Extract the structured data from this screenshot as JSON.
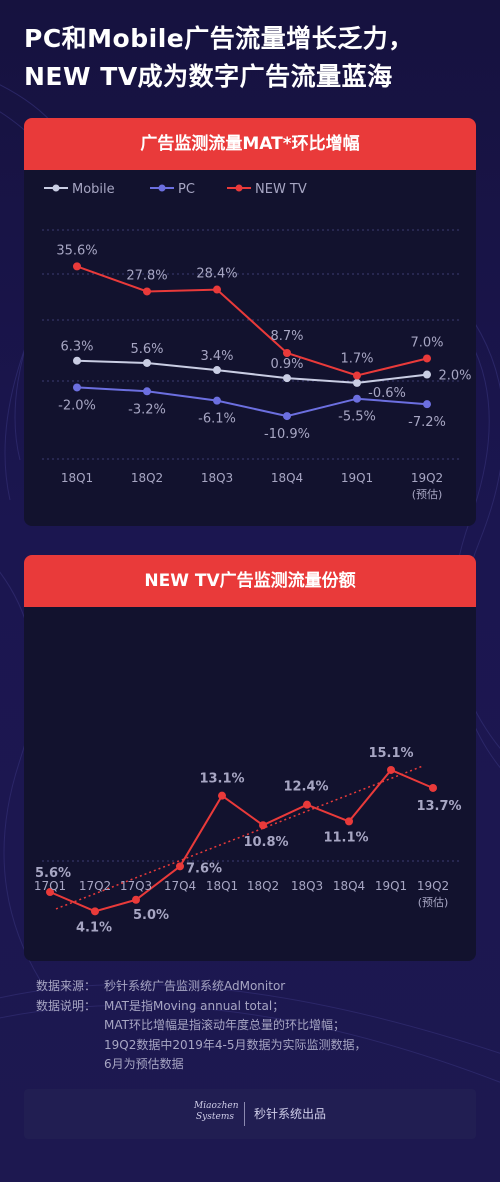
{
  "title": {
    "line1": "PC和Mobile广告流量增长乏力，",
    "line2": "NEW TV成为数字广告流量蓝海"
  },
  "colors": {
    "background": "#18143f",
    "card": "#12122e",
    "header": "#e93a3a",
    "mobile": "#c9cde3",
    "pc": "#6c6fe0",
    "newtv": "#e93a3a",
    "label": "#a7a6c3"
  },
  "chart_data": [
    {
      "type": "line",
      "title": "广告监测流量MAT*环比增幅",
      "categories": [
        "18Q1",
        "18Q2",
        "18Q3",
        "18Q4",
        "19Q1",
        "19Q2"
      ],
      "category_notes": [
        "",
        "",
        "",
        "",
        "",
        "(预估)"
      ],
      "series": [
        {
          "name": "Mobile",
          "values": [
            6.3,
            5.6,
            3.4,
            0.9,
            -0.6,
            2.0
          ],
          "labels": [
            "6.3%",
            "5.6%",
            "3.4%",
            "0.9%",
            "-0.6%",
            "2.0%"
          ],
          "color": "#c9cde3"
        },
        {
          "name": "PC",
          "values": [
            -2.0,
            -3.2,
            -6.1,
            -10.9,
            -5.5,
            -7.2
          ],
          "labels": [
            "-2.0%",
            "-3.2%",
            "-6.1%",
            "-10.9%",
            "-5.5%",
            "-7.2%"
          ],
          "color": "#6c6fe0"
        },
        {
          "name": "NEW TV",
          "values": [
            35.6,
            27.8,
            28.4,
            8.7,
            1.7,
            7.0
          ],
          "labels": [
            "35.6%",
            "27.8%",
            "28.4%",
            "8.7%",
            "1.7%",
            "7.0%"
          ],
          "color": "#e93a3a"
        }
      ],
      "ylim": [
        -20,
        40
      ],
      "grid": true,
      "legend": "top-left"
    },
    {
      "type": "line",
      "title": "NEW TV广告监测流量份额",
      "categories": [
        "17Q1",
        "17Q2",
        "17Q3",
        "17Q4",
        "18Q1",
        "18Q2",
        "18Q3",
        "18Q4",
        "19Q1",
        "19Q2"
      ],
      "category_notes": [
        "",
        "",
        "",
        "",
        "",
        "",
        "",
        "",
        "",
        "(预估)"
      ],
      "series": [
        {
          "values": [
            5.6,
            4.1,
            5.0,
            7.6,
            13.1,
            10.8,
            12.4,
            11.1,
            15.1,
            13.7
          ],
          "labels": [
            "5.6%",
            "4.1%",
            "5.0%",
            "7.6%",
            "13.1%",
            "10.8%",
            "12.4%",
            "11.1%",
            "15.1%",
            "13.7%"
          ],
          "color": "#e93a3a"
        }
      ],
      "trendline": true,
      "grid": true
    }
  ],
  "notes": {
    "source_label": "数据来源：",
    "source_text": "秒针系统广告监测系统AdMonitor",
    "desc_label": "数据说明：",
    "desc_lines": [
      "MAT是指Moving annual total；",
      "MAT环比增幅是指滚动年度总量的环比增幅；",
      "19Q2数据中2019年4-5月数据为实际监测数据，",
      "6月为预估数据"
    ]
  },
  "footer": {
    "logo_line1": "Miaozhen",
    "logo_line2": "Systems",
    "text": "秒针系统出品"
  }
}
